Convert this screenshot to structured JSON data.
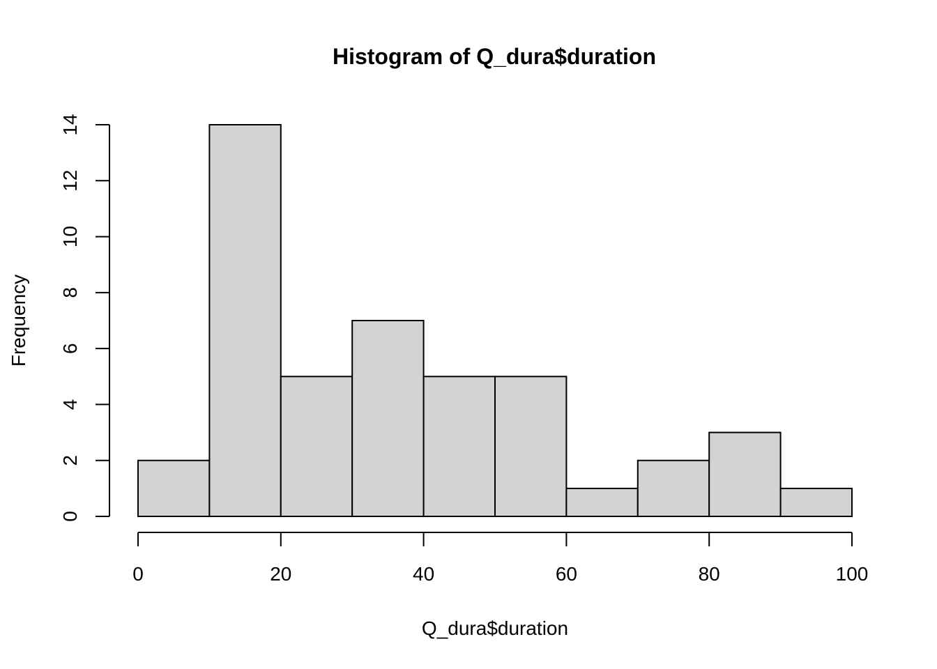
{
  "chart_data": {
    "type": "bar",
    "title": "Histogram of Q_dura$duration",
    "xlabel": "Q_dura$duration",
    "ylabel": "Frequency",
    "bins": [
      {
        "start": 0,
        "end": 10,
        "count": 2
      },
      {
        "start": 10,
        "end": 20,
        "count": 14
      },
      {
        "start": 20,
        "end": 30,
        "count": 5
      },
      {
        "start": 30,
        "end": 40,
        "count": 7
      },
      {
        "start": 40,
        "end": 50,
        "count": 5
      },
      {
        "start": 50,
        "end": 60,
        "count": 5
      },
      {
        "start": 60,
        "end": 70,
        "count": 1
      },
      {
        "start": 70,
        "end": 80,
        "count": 2
      },
      {
        "start": 80,
        "end": 90,
        "count": 3
      },
      {
        "start": 90,
        "end": 100,
        "count": 1
      }
    ],
    "xlim": [
      0,
      100
    ],
    "ylim": [
      0,
      14
    ],
    "x_ticks": [
      0,
      20,
      40,
      60,
      80,
      100
    ],
    "y_ticks": [
      0,
      2,
      4,
      6,
      8,
      10,
      12,
      14
    ],
    "bar_fill": "#d3d3d3",
    "bar_stroke": "#000000",
    "grid": false
  }
}
